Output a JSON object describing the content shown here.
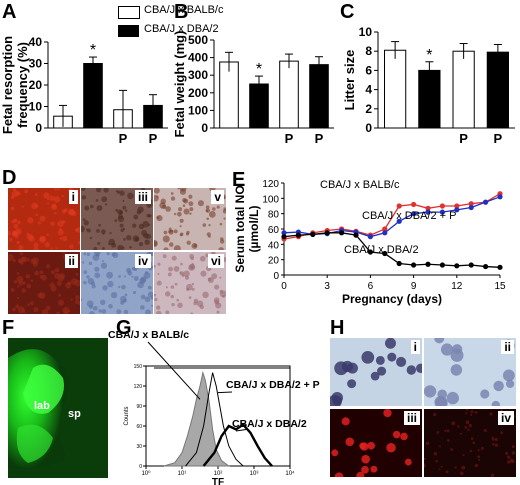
{
  "panels": {
    "a": "A",
    "b": "B",
    "c": "C",
    "d": "D",
    "e": "E",
    "f": "F",
    "g": "G",
    "h": "H"
  },
  "legend": {
    "open_label": "CBA/J x BALB/c",
    "filled_label": "CBA/J x DBA/2"
  },
  "chart_data": [
    {
      "type": "bar",
      "panel": "A",
      "ylabel": "Fetal resorption frequency (%)",
      "ylim": [
        0,
        40
      ],
      "yticks": [
        0,
        10,
        20,
        30,
        40
      ],
      "categories": [
        "",
        "",
        "P",
        "P"
      ],
      "values": [
        5.5,
        30,
        8.5,
        10.5
      ],
      "errors": [
        5,
        3,
        9,
        5
      ],
      "fill": [
        "white",
        "black",
        "white",
        "black"
      ],
      "significance": [
        "",
        "*",
        "",
        ""
      ]
    },
    {
      "type": "bar",
      "panel": "B",
      "ylabel": "Fetal weight (mg)",
      "ylim": [
        0,
        500
      ],
      "yticks": [
        0,
        100,
        200,
        300,
        400,
        500
      ],
      "categories": [
        "",
        "",
        "P",
        "P"
      ],
      "values": [
        375,
        250,
        380,
        360
      ],
      "errors": [
        55,
        45,
        40,
        45
      ],
      "fill": [
        "white",
        "black",
        "white",
        "black"
      ],
      "significance": [
        "",
        "*",
        "",
        ""
      ]
    },
    {
      "type": "bar",
      "panel": "C",
      "ylabel": "Litter size",
      "ylim": [
        0,
        10
      ],
      "yticks": [
        0,
        2,
        4,
        6,
        8,
        10
      ],
      "categories": [
        "",
        "",
        "P",
        "P"
      ],
      "values": [
        8.1,
        6.0,
        8.0,
        7.9
      ],
      "errors": [
        0.9,
        0.9,
        0.8,
        0.8
      ],
      "fill": [
        "white",
        "black",
        "white",
        "black"
      ],
      "significance": [
        "",
        "*",
        "",
        ""
      ]
    },
    {
      "type": "line",
      "panel": "E",
      "ylabel": "Serum total NO (µmol/L)",
      "xlabel": "Pregnancy (days)",
      "xlim": [
        0,
        15
      ],
      "ylim": [
        0,
        120
      ],
      "xticks": [
        0,
        3,
        6,
        9,
        12,
        15
      ],
      "yticks": [
        0,
        20,
        40,
        60,
        80,
        100,
        120
      ],
      "x": [
        0,
        1,
        2,
        3,
        4,
        5,
        6,
        7,
        8,
        9,
        10,
        11,
        12,
        13,
        14,
        15
      ],
      "series": [
        {
          "name": "CBA/J x BALB/c",
          "color": "#e03030",
          "values": [
            47,
            50,
            55,
            58,
            60,
            57,
            52,
            60,
            90,
            92,
            87,
            90,
            90,
            93,
            95,
            106
          ]
        },
        {
          "name": "CBA/J x DBA/2 + P",
          "color": "#2030c0",
          "values": [
            55,
            56,
            53,
            54,
            58,
            56,
            50,
            55,
            70,
            80,
            82,
            82,
            85,
            88,
            95,
            102
          ]
        },
        {
          "name": "CBA/J x DBA/2",
          "color": "#000000",
          "values": [
            50,
            52,
            53,
            55,
            55,
            52,
            30,
            28,
            15,
            13,
            14,
            13,
            12,
            13,
            11,
            10
          ]
        }
      ]
    },
    {
      "type": "line",
      "panel": "G",
      "ylabel": "Counts",
      "xlabel": "TF",
      "xlim": [
        0,
        4
      ],
      "ylim": [
        0,
        150
      ],
      "xticks_labels": [
        "10⁰",
        "10¹",
        "10²",
        "10³",
        "10⁴"
      ],
      "yticks": [
        0,
        30,
        60,
        90,
        120,
        150
      ],
      "annotations": [
        "CBA/J x BALB/c",
        "CBA/J x DBA/2 + P",
        "CBA/J x DBA/2"
      ]
    }
  ],
  "micrographs": {
    "d": [
      "i",
      "ii",
      "iii",
      "iv",
      "v",
      "vi"
    ],
    "f": [
      "lab",
      "sp"
    ],
    "h": [
      "i",
      "ii",
      "iii",
      "iv"
    ]
  },
  "colors": {
    "brown_stain": "#8a5a40",
    "blue_stain": "#8fa4c8",
    "fluor_red": "#c00000",
    "fluor_green": "#20d020",
    "histogram_fill": "#a8a8a8"
  }
}
